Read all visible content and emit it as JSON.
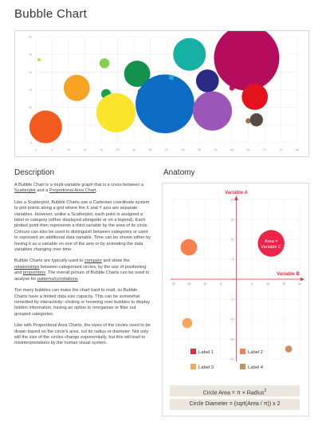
{
  "page": {
    "title": "Bubble Chart"
  },
  "chart_data": {
    "type": "scatter",
    "subtype": "bubble",
    "x_ticks": [
      0,
      5,
      10,
      15,
      20,
      25,
      30,
      35,
      40,
      45,
      50,
      55,
      60,
      65,
      70,
      75,
      80
    ],
    "y_ticks": [
      0,
      5,
      10,
      15,
      20,
      25,
      30
    ],
    "xlim": [
      0,
      80
    ],
    "ylim": [
      0,
      30
    ],
    "grid": true,
    "points": [
      {
        "x": 1,
        "y": 23.5,
        "r": 0.5,
        "color": "#c6e03a"
      },
      {
        "x": 3,
        "y": 4.5,
        "r": 5,
        "color": "#f25a1e"
      },
      {
        "x": 12.5,
        "y": 15.5,
        "r": 4,
        "color": "#f7a323"
      },
      {
        "x": 21,
        "y": 22.5,
        "r": 1.5,
        "color": "#7ed14d"
      },
      {
        "x": 21.5,
        "y": 13.8,
        "r": 1.5,
        "color": "#1b9f4f"
      },
      {
        "x": 24.5,
        "y": 8.5,
        "r": 6,
        "color": "#fae52c"
      },
      {
        "x": 31,
        "y": 19.5,
        "r": 4,
        "color": "#14914b"
      },
      {
        "x": 32,
        "y": 14.5,
        "r": 0.8,
        "color": "#1d5a36"
      },
      {
        "x": 39.5,
        "y": 11,
        "r": 9,
        "color": "#0d6cc4"
      },
      {
        "x": 41.5,
        "y": 18.5,
        "r": 0.8,
        "color": "#20a9d4"
      },
      {
        "x": 47,
        "y": 25,
        "r": 5,
        "color": "#16b0a4"
      },
      {
        "x": 52.5,
        "y": 17.5,
        "r": 3.5,
        "color": "#2a2a86"
      },
      {
        "x": 54,
        "y": 9,
        "r": 6,
        "color": "#9c56b7"
      },
      {
        "x": 60,
        "y": 15.5,
        "r": 0.8,
        "color": "#c5174a"
      },
      {
        "x": 64.5,
        "y": 24,
        "r": 10,
        "color": "#b60c5d"
      },
      {
        "x": 65,
        "y": 6.2,
        "r": 0.8,
        "color": "#9a7350"
      },
      {
        "x": 67,
        "y": 13,
        "r": 4,
        "color": "#e3121b"
      },
      {
        "x": 67.5,
        "y": 6.5,
        "r": 2,
        "color": "#594a40"
      }
    ]
  },
  "description": {
    "title": "Description",
    "paragraphs": [
      [
        {
          "t": "A Bubble Chart is a multi-variable graph that is a cross between a "
        },
        {
          "t": "Scatterplot",
          "u": true
        },
        {
          "t": " and a "
        },
        {
          "t": "Proportional Area Chart",
          "u": true
        },
        {
          "t": "."
        }
      ],
      [
        {
          "t": "Like a Scatterplot, Bubble Charts use a Cartesian coordinate system to plot points along a grid where the X and Y axis are separate variables. However, unlike a Scatterplot, each point is assigned a label or category (either displayed alongside or on a legend). Each plotted point then represents a third variable by the area of its circle. Colours can also be used to distinguish between categories or used to represent an additional data variable. Time can be shown either by having it as a variable on one of the axis or by animating the data variables changing over time."
        }
      ],
      [
        {
          "t": "Bubble Charts are typically used to "
        },
        {
          "t": "compare",
          "u": true
        },
        {
          "t": " and show the "
        },
        {
          "t": "relationships",
          "u": true
        },
        {
          "t": " between categorised circles, by the use of positioning and "
        },
        {
          "t": "proportions",
          "u": true
        },
        {
          "t": ". The overall picture of Bubble Charts can be used to analyse for "
        },
        {
          "t": "patterns/correlations",
          "u": true
        },
        {
          "t": "."
        }
      ],
      [
        {
          "t": "Too many bubbles can make the chart hard to read, so Bubble Charts have a limited data size capacity. This can be somewhat remedied by interactivity: clicking or hovering over bubbles to display hidden information, having an option to reorganise or filter out grouped categories."
        }
      ],
      [
        {
          "t": "Like with Proportional Area Charts, the sizes of the circles need to be drawn based on the circle's area, not its radius or diameter. Not only will the size of the circles change exponentially, but this will lead to misinterpretations by the human visual system."
        }
      ]
    ]
  },
  "anatomy": {
    "title": "Anatomy",
    "variable_a": "Variable A",
    "variable_b": "Variable B",
    "area_line1": "Area =",
    "area_line2": "Variable C",
    "x_ticks": [
      "-20",
      "-15",
      "-10",
      "-5",
      "0",
      "5",
      "10",
      "15",
      "20"
    ],
    "y_ticks": [
      "20",
      "15",
      "10",
      "5",
      "0",
      "-5",
      "-10",
      "-15",
      "-20"
    ],
    "bubbles": [
      {
        "x": 11,
        "y": 9,
        "r": 4.2,
        "color": "#ed2347"
      },
      {
        "x": -15,
        "y": 8,
        "r": 2.6,
        "color": "#f7804d"
      },
      {
        "x": -15.5,
        "y": -11,
        "r": 1.6,
        "color": "#f7a75d"
      },
      {
        "x": 16.5,
        "y": -17.5,
        "r": 1.1,
        "color": "#c99263"
      }
    ],
    "legend": [
      {
        "label": "Label 1",
        "color": "#ed2347"
      },
      {
        "label": "Label 2",
        "color": "#f7804d"
      },
      {
        "label": "Label 3",
        "color": "#f7a75d"
      },
      {
        "label": "Label 4",
        "color": "#c99263"
      }
    ],
    "formula_area": "Circle Area = π × Radius",
    "formula_area_sup": "2",
    "formula_diameter": "Circle Diameter = (sqrt(Area / π)) x 2",
    "colors": {
      "axis": "#e63246",
      "grid": "#ececec"
    }
  }
}
